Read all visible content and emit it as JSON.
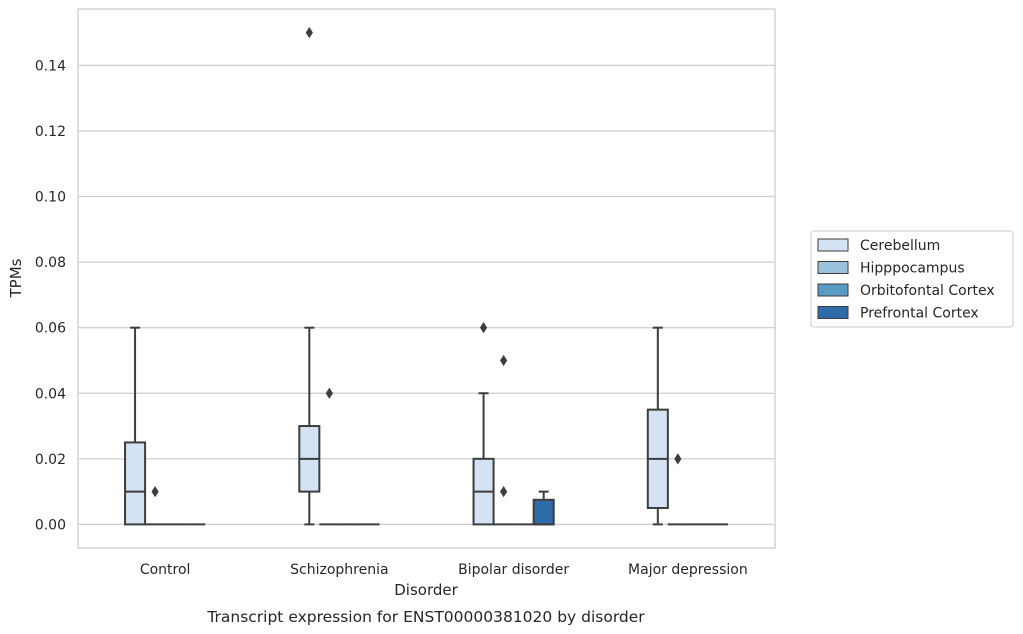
{
  "chart_data": {
    "type": "box",
    "title": "",
    "caption": "Transcript expression for ENST00000381020 by disorder",
    "xlabel": "Disorder",
    "ylabel": "TPMs",
    "ylim": [
      -0.0072,
      0.1572
    ],
    "yticks": [
      0.0,
      0.02,
      0.04,
      0.06,
      0.08,
      0.1,
      0.12,
      0.14
    ],
    "ytick_labels": [
      "0.00",
      "0.02",
      "0.04",
      "0.06",
      "0.08",
      "0.10",
      "0.12",
      "0.14"
    ],
    "grid": "horizontal",
    "legend_position": "right",
    "categories": [
      "Control",
      "Schizophrenia",
      "Bipolar disorder",
      "Major depression"
    ],
    "series": [
      {
        "name": "Cerebellum",
        "color": "#d4e3f3",
        "boxes": [
          {
            "q1": 0.0,
            "median": 0.01,
            "q3": 0.025,
            "whisker_low": 0.0,
            "whisker_high": 0.06,
            "outliers": []
          },
          {
            "q1": 0.01,
            "median": 0.02,
            "q3": 0.03,
            "whisker_low": 0.0,
            "whisker_high": 0.06,
            "outliers": [
              0.15
            ]
          },
          {
            "q1": 0.0,
            "median": 0.01,
            "q3": 0.02,
            "whisker_low": 0.0,
            "whisker_high": 0.04,
            "outliers": [
              0.06
            ]
          },
          {
            "q1": 0.005,
            "median": 0.02,
            "q3": 0.035,
            "whisker_low": 0.0,
            "whisker_high": 0.06,
            "outliers": []
          }
        ]
      },
      {
        "name": "Hipppocampus",
        "color": "#9ac2dc",
        "boxes": [
          {
            "q1": 0.0,
            "median": 0.0,
            "q3": 0.0,
            "whisker_low": 0.0,
            "whisker_high": 0.0,
            "outliers": [
              0.01
            ]
          },
          {
            "q1": 0.0,
            "median": 0.0,
            "q3": 0.0,
            "whisker_low": 0.0,
            "whisker_high": 0.0,
            "outliers": [
              0.04
            ]
          },
          {
            "q1": 0.0,
            "median": 0.0,
            "q3": 0.0,
            "whisker_low": 0.0,
            "whisker_high": 0.0,
            "outliers": [
              0.05,
              0.01
            ]
          },
          {
            "q1": 0.0,
            "median": 0.0,
            "q3": 0.0,
            "whisker_low": 0.0,
            "whisker_high": 0.0,
            "outliers": [
              0.02
            ]
          }
        ]
      },
      {
        "name": "Orbitofontal Cortex",
        "color": "#5a9bc6",
        "boxes": [
          {
            "q1": 0.0,
            "median": 0.0,
            "q3": 0.0,
            "whisker_low": 0.0,
            "whisker_high": 0.0,
            "outliers": []
          },
          {
            "q1": 0.0,
            "median": 0.0,
            "q3": 0.0,
            "whisker_low": 0.0,
            "whisker_high": 0.0,
            "outliers": []
          },
          {
            "q1": 0.0,
            "median": 0.0,
            "q3": 0.0,
            "whisker_low": 0.0,
            "whisker_high": 0.0,
            "outliers": []
          },
          {
            "q1": 0.0,
            "median": 0.0,
            "q3": 0.0,
            "whisker_low": 0.0,
            "whisker_high": 0.0,
            "outliers": []
          }
        ]
      },
      {
        "name": "Prefrontal Cortex",
        "color": "#2d6ba9",
        "boxes": [
          {
            "q1": 0.0,
            "median": 0.0,
            "q3": 0.0,
            "whisker_low": 0.0,
            "whisker_high": 0.0,
            "outliers": []
          },
          {
            "q1": 0.0,
            "median": 0.0,
            "q3": 0.0,
            "whisker_low": 0.0,
            "whisker_high": 0.0,
            "outliers": []
          },
          {
            "q1": 0.0,
            "median": 0.0,
            "q3": 0.0075,
            "whisker_low": 0.0,
            "whisker_high": 0.01,
            "outliers": []
          },
          {
            "q1": 0.0,
            "median": 0.0,
            "q3": 0.0,
            "whisker_low": 0.0,
            "whisker_high": 0.0,
            "outliers": []
          }
        ]
      }
    ]
  }
}
